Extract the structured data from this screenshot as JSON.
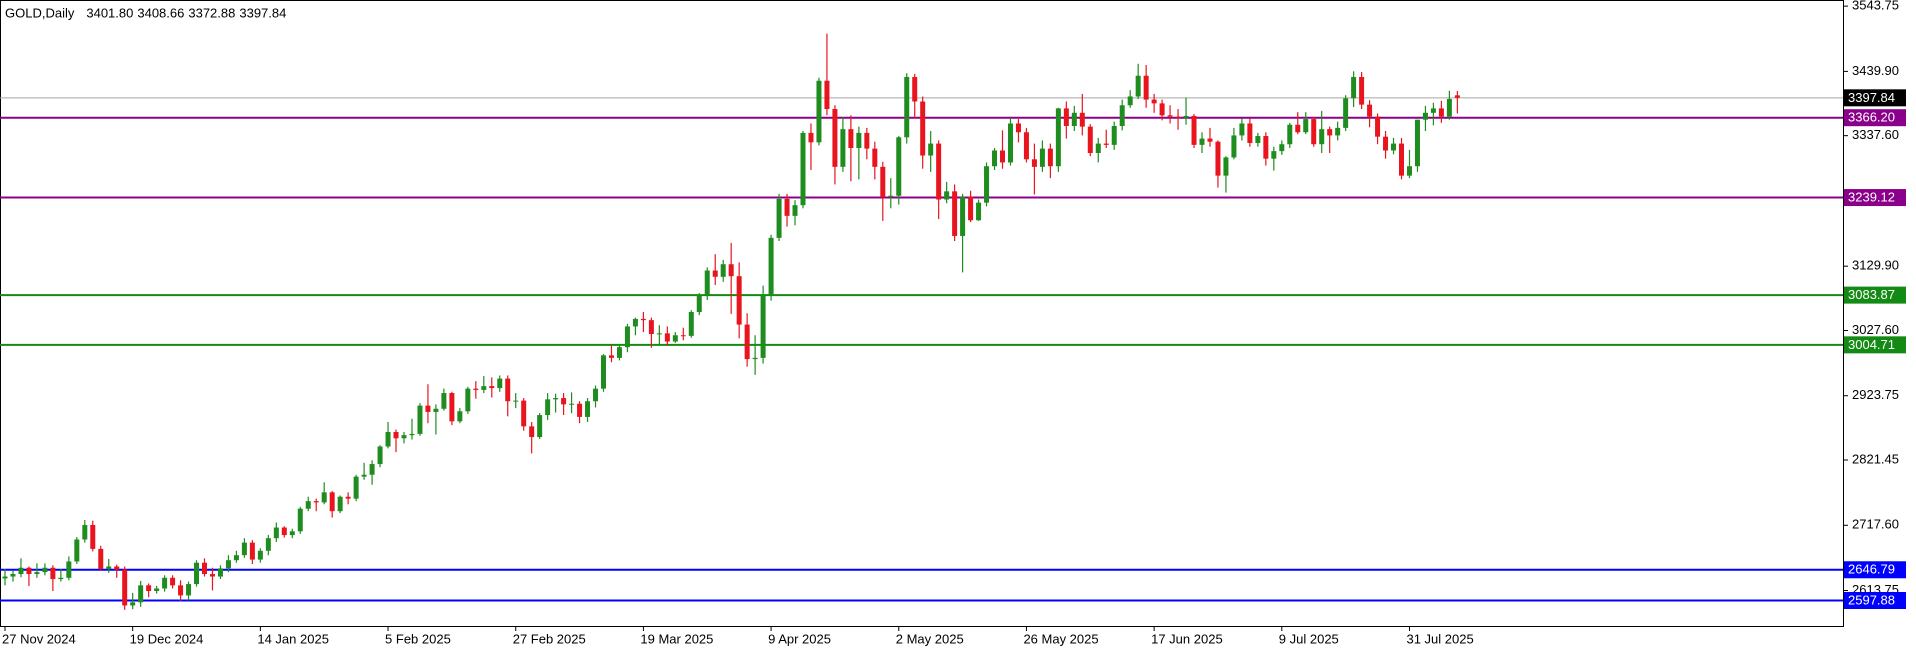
{
  "chart_data": {
    "type": "candlestick",
    "title": "GOLD,Daily",
    "header_values": [
      {
        "value": 3401.8,
        "label": "3401.80"
      },
      3408.66,
      3372.88,
      3397.84
    ],
    "up_color": "#1e8c1e",
    "down_color": "#e8141e",
    "ylim": [
      2557.3,
      3553.5
    ],
    "yticks": [
      3543.75,
      {
        "value": 3439.9,
        "label": "3439.90"
      },
      {
        "value": 3337.6,
        "label": "3337.60"
      },
      {
        "value": 3129.9,
        "label": "3129.90"
      },
      {
        "value": 3027.6,
        "label": "3027.60"
      },
      2923.75,
      2821.45,
      {
        "value": 2717.6,
        "label": "2717.60"
      },
      2613.75
    ],
    "grid": false,
    "levels": [
      {
        "price": 3397.84,
        "color": "#a8a8a8",
        "label_color": "#000000"
      },
      {
        "price": {
          "value": 3366.2,
          "label": "3366.20"
        },
        "color": "#8b008b",
        "label_color": "#8b008b"
      },
      {
        "price": 3239.12,
        "color": "#8b008b",
        "label_color": "#8b008b"
      },
      {
        "price": 3083.87,
        "color": "#138a13",
        "label_color": "#138a13"
      },
      {
        "price": 3004.71,
        "color": "#138a13",
        "label_color": "#138a13"
      },
      {
        "price": 2646.79,
        "color": "#0000ff",
        "label_color": "#0000ff"
      },
      {
        "price": 2597.88,
        "color": "#0000ff",
        "label_color": "#0000ff"
      }
    ],
    "categories": [
      "27 Nov 2024",
      null,
      null,
      null,
      null,
      null,
      null,
      null,
      null,
      null,
      null,
      null,
      null,
      null,
      null,
      null,
      "19 Dec 2024",
      null,
      null,
      null,
      null,
      null,
      null,
      null,
      null,
      null,
      null,
      null,
      null,
      null,
      null,
      null,
      "14 Jan 2025",
      null,
      null,
      null,
      null,
      null,
      null,
      null,
      null,
      null,
      null,
      null,
      null,
      null,
      null,
      null,
      "5 Feb 2025",
      null,
      null,
      null,
      null,
      null,
      null,
      null,
      null,
      null,
      null,
      null,
      null,
      null,
      null,
      null,
      "27 Feb 2025",
      null,
      null,
      null,
      null,
      null,
      null,
      null,
      null,
      null,
      null,
      null,
      null,
      null,
      null,
      null,
      "19 Mar 2025",
      null,
      null,
      null,
      null,
      null,
      null,
      null,
      null,
      null,
      null,
      null,
      null,
      null,
      null,
      null,
      "9 Apr 2025",
      null,
      null,
      null,
      null,
      null,
      null,
      null,
      null,
      null,
      null,
      null,
      null,
      null,
      null,
      null,
      "2 May 2025",
      null,
      null,
      null,
      null,
      null,
      null,
      null,
      null,
      null,
      null,
      null,
      null,
      null,
      null,
      null,
      "26 May 2025",
      null,
      null,
      null,
      null,
      null,
      null,
      null,
      null,
      null,
      null,
      null,
      null,
      null,
      null,
      null,
      "17 Jun 2025",
      null,
      null,
      null,
      null,
      null,
      null,
      null,
      null,
      null,
      null,
      null,
      null,
      null,
      null,
      null,
      "9 Jul 2025",
      null,
      null,
      null,
      null,
      null,
      null,
      null,
      null,
      null,
      null,
      null,
      null,
      null,
      null,
      null,
      "31 Jul 2025",
      null,
      null,
      null,
      null,
      null,
      null
    ],
    "ohlc": [
      [
        2633,
        2648,
        2622,
        2636
      ],
      [
        2636,
        2645,
        2628,
        2640
      ],
      [
        2640,
        2665,
        2635,
        2650
      ],
      [
        2650,
        2652,
        2621,
        2640
      ],
      [
        2640,
        2657,
        2634,
        2643
      ],
      [
        2643,
        2657,
        2638,
        2650
      ],
      [
        2650,
        2654,
        2613,
        2632
      ],
      [
        2632,
        2648,
        2628,
        2634
      ],
      [
        2634,
        2668,
        2630,
        2660
      ],
      [
        2660,
        2699,
        2656,
        2695
      ],
      [
        2695,
        2726,
        2690,
        2718
      ],
      [
        2718,
        2725,
        2676,
        2680
      ],
      [
        2680,
        2685,
        2645,
        2648
      ],
      [
        2648,
        2664,
        2642,
        2652
      ],
      [
        2652,
        2655,
        2634,
        2647
      ],
      [
        2647,
        2652,
        2583,
        2590
      ],
      [
        2590,
        2610,
        2584,
        2595
      ],
      [
        2595,
        2629,
        2588,
        2622
      ],
      [
        2622,
        2625,
        2603,
        2613
      ],
      [
        2613,
        2621,
        2609,
        2617
      ],
      [
        2617,
        2638,
        2612,
        2634
      ],
      [
        2634,
        2638,
        2617,
        2622
      ],
      [
        2622,
        2630,
        2597,
        2606
      ],
      [
        2606,
        2628,
        2598,
        2624
      ],
      [
        2624,
        2662,
        2620,
        2658
      ],
      [
        2658,
        2665,
        2636,
        2640
      ],
      [
        2640,
        2650,
        2614,
        2636
      ],
      [
        2636,
        2654,
        2632,
        2649
      ],
      [
        2649,
        2670,
        2643,
        2662
      ],
      [
        2662,
        2677,
        2658,
        2670
      ],
      [
        2670,
        2697,
        2666,
        2690
      ],
      [
        2690,
        2694,
        2656,
        2663
      ],
      [
        2663,
        2681,
        2658,
        2677
      ],
      [
        2677,
        2702,
        2670,
        2697
      ],
      [
        2697,
        2722,
        2691,
        2714
      ],
      [
        2714,
        2716,
        2698,
        2702
      ],
      [
        2702,
        2712,
        2697,
        2708
      ],
      [
        2708,
        2747,
        2704,
        2744
      ],
      [
        2744,
        2763,
        2740,
        2756
      ],
      [
        2756,
        2760,
        2740,
        2754
      ],
      [
        2754,
        2786,
        2751,
        2770
      ],
      [
        2770,
        2772,
        2730,
        2740
      ],
      [
        2740,
        2765,
        2737,
        2763
      ],
      [
        2763,
        2770,
        2751,
        2760
      ],
      [
        2760,
        2798,
        2756,
        2795
      ],
      [
        2795,
        2817,
        2790,
        2798
      ],
      [
        2798,
        2821,
        2782,
        2815
      ],
      [
        2815,
        2845,
        2810,
        2843
      ],
      [
        2843,
        2882,
        2840,
        2866
      ],
      [
        2866,
        2870,
        2834,
        2856
      ],
      [
        2856,
        2866,
        2848,
        2861
      ],
      [
        2861,
        2887,
        2854,
        2863
      ],
      [
        2863,
        2912,
        2860,
        2908
      ],
      [
        2908,
        2942,
        2880,
        2898
      ],
      [
        2898,
        2910,
        2862,
        2903
      ],
      [
        2903,
        2935,
        2900,
        2928
      ],
      [
        2928,
        2930,
        2877,
        2883
      ],
      [
        2883,
        2904,
        2880,
        2899
      ],
      [
        2899,
        2938,
        2895,
        2935
      ],
      [
        2935,
        2947,
        2919,
        2933
      ],
      [
        2933,
        2955,
        2928,
        2939
      ],
      [
        2939,
        2953,
        2921,
        2936
      ],
      [
        2936,
        2956,
        2930,
        2951
      ],
      [
        2951,
        2956,
        2891,
        2915
      ],
      [
        2915,
        2928,
        2904,
        2916
      ],
      [
        2916,
        2920,
        2868,
        2875
      ],
      [
        2875,
        2882,
        2832,
        2858
      ],
      [
        2858,
        2896,
        2855,
        2893
      ],
      [
        2893,
        2928,
        2885,
        2918
      ],
      [
        2918,
        2927,
        2897,
        2920
      ],
      [
        2920,
        2928,
        2893,
        2910
      ],
      [
        2910,
        2929,
        2896,
        2911
      ],
      [
        2911,
        2915,
        2880,
        2890
      ],
      [
        2890,
        2920,
        2882,
        2915
      ],
      [
        2915,
        2940,
        2905,
        2935
      ],
      [
        2935,
        2990,
        2930,
        2988
      ],
      [
        2988,
        3005,
        2977,
        2984
      ],
      [
        2984,
        3004,
        2980,
        3001
      ],
      [
        3001,
        3038,
        2993,
        3034
      ],
      [
        3034,
        3048,
        3020,
        3046
      ],
      [
        3046,
        3057,
        3025,
        3044
      ],
      [
        3044,
        3048,
        3000,
        3022
      ],
      [
        3022,
        3036,
        3005,
        3023
      ],
      [
        3023,
        3034,
        3003,
        3010
      ],
      [
        3010,
        3025,
        3008,
        3020
      ],
      [
        3020,
        3032,
        3012,
        3019
      ],
      [
        3019,
        3060,
        3016,
        3057
      ],
      [
        3057,
        3087,
        3052,
        3084
      ],
      [
        3084,
        3128,
        3076,
        3123
      ],
      [
        3123,
        3149,
        3100,
        3113
      ],
      [
        3113,
        3140,
        3105,
        3133
      ],
      [
        3133,
        3167,
        3054,
        3114
      ],
      [
        3114,
        3136,
        3015,
        3037
      ],
      [
        3037,
        3055,
        2970,
        2982
      ],
      [
        2982,
        3020,
        2957,
        2984
      ],
      [
        2984,
        3099,
        2975,
        3083
      ],
      [
        3083,
        3180,
        3075,
        3175
      ],
      [
        3175,
        3245,
        3170,
        3237
      ],
      [
        3237,
        3245,
        3193,
        3210
      ],
      [
        3210,
        3235,
        3195,
        3227
      ],
      [
        3227,
        3345,
        3222,
        3342
      ],
      [
        3342,
        3357,
        3283,
        3327
      ],
      [
        3327,
        3430,
        3322,
        3425
      ],
      [
        3425,
        3500,
        3370,
        3380
      ],
      [
        3380,
        3386,
        3260,
        3288
      ],
      [
        3288,
        3367,
        3280,
        3348
      ],
      [
        3348,
        3370,
        3265,
        3318
      ],
      [
        3318,
        3352,
        3268,
        3342
      ],
      [
        3342,
        3350,
        3300,
        3317
      ],
      [
        3317,
        3328,
        3268,
        3288
      ],
      [
        3288,
        3296,
        3202,
        3240
      ],
      [
        3240,
        3270,
        3222,
        3242
      ],
      [
        3242,
        3337,
        3228,
        3335
      ],
      [
        3335,
        3437,
        3325,
        3431
      ],
      [
        3431,
        3436,
        3365,
        3392
      ],
      [
        3392,
        3400,
        3285,
        3306
      ],
      [
        3306,
        3345,
        3280,
        3325
      ],
      [
        3325,
        3330,
        3205,
        3236
      ],
      [
        3236,
        3264,
        3230,
        3249
      ],
      [
        3249,
        3260,
        3170,
        3178
      ],
      [
        3178,
        3245,
        3120,
        3240
      ],
      [
        3240,
        3250,
        3200,
        3203
      ],
      [
        3203,
        3236,
        3202,
        3231
      ],
      [
        3231,
        3295,
        3225,
        3289
      ],
      [
        3289,
        3318,
        3283,
        3314
      ],
      [
        3314,
        3346,
        3285,
        3295
      ],
      [
        3295,
        3366,
        3290,
        3357
      ],
      [
        3357,
        3364,
        3327,
        3343
      ],
      [
        3343,
        3350,
        3295,
        3300
      ],
      [
        3300,
        3325,
        3244,
        3288
      ],
      [
        3288,
        3330,
        3280,
        3317
      ],
      [
        3317,
        3325,
        3270,
        3289
      ],
      [
        3289,
        3382,
        3280,
        3381
      ],
      [
        3381,
        3392,
        3333,
        3353
      ],
      [
        3353,
        3385,
        3345,
        3374
      ],
      [
        3374,
        3404,
        3338,
        3352
      ],
      [
        3352,
        3356,
        3305,
        3310
      ],
      [
        3310,
        3334,
        3295,
        3325
      ],
      [
        3325,
        3347,
        3318,
        3323
      ],
      [
        3323,
        3360,
        3315,
        3353
      ],
      [
        3353,
        3395,
        3346,
        3386
      ],
      [
        3386,
        3410,
        3382,
        3400
      ],
      [
        3400,
        3452,
        3396,
        3433
      ],
      [
        3433,
        3450,
        3382,
        3395
      ],
      [
        3395,
        3404,
        3374,
        3389
      ],
      [
        3389,
        3395,
        3362,
        3370
      ],
      [
        3370,
        3386,
        3357,
        3368
      ],
      [
        3368,
        3380,
        3347,
        3366
      ],
      [
        3366,
        3398,
        3355,
        3369
      ],
      [
        3369,
        3372,
        3318,
        3323
      ],
      [
        3323,
        3343,
        3310,
        3333
      ],
      [
        3333,
        3350,
        3320,
        3328
      ],
      [
        3328,
        3330,
        3255,
        3274
      ],
      [
        3274,
        3305,
        3247,
        3303
      ],
      [
        3303,
        3350,
        3300,
        3338
      ],
      [
        3338,
        3365,
        3330,
        3357
      ],
      [
        3357,
        3365,
        3320,
        3326
      ],
      [
        3326,
        3342,
        3320,
        3337
      ],
      [
        3337,
        3343,
        3290,
        3301
      ],
      [
        3301,
        3320,
        3282,
        3313
      ],
      [
        3313,
        3330,
        3307,
        3324
      ],
      [
        3324,
        3358,
        3318,
        3355
      ],
      [
        3355,
        3375,
        3340,
        3343
      ],
      [
        3343,
        3375,
        3340,
        3364
      ],
      [
        3364,
        3367,
        3320,
        3324
      ],
      [
        3324,
        3377,
        3310,
        3348
      ],
      [
        3348,
        3352,
        3310,
        3338
      ],
      [
        3338,
        3360,
        3330,
        3350
      ],
      [
        3350,
        3402,
        3345,
        3397
      ],
      [
        3397,
        3440,
        3383,
        3431
      ],
      [
        3431,
        3439,
        3380,
        3387
      ],
      [
        3387,
        3394,
        3351,
        3368
      ],
      [
        3368,
        3373,
        3324,
        3336
      ],
      [
        3336,
        3345,
        3301,
        3314
      ],
      [
        3314,
        3334,
        3308,
        3325
      ],
      [
        3325,
        3334,
        3268,
        3274
      ],
      [
        3274,
        3315,
        3270,
        3289
      ],
      [
        3289,
        3363,
        3280,
        3363
      ],
      [
        3363,
        3385,
        3345,
        3374
      ],
      [
        3374,
        3390,
        3354,
        3381
      ],
      [
        3381,
        3393,
        3358,
        3368
      ],
      [
        3368,
        3409,
        3363,
        3396
      ],
      [
        3401.8,
        3408.66,
        3372.88,
        3397.84
      ]
    ]
  }
}
